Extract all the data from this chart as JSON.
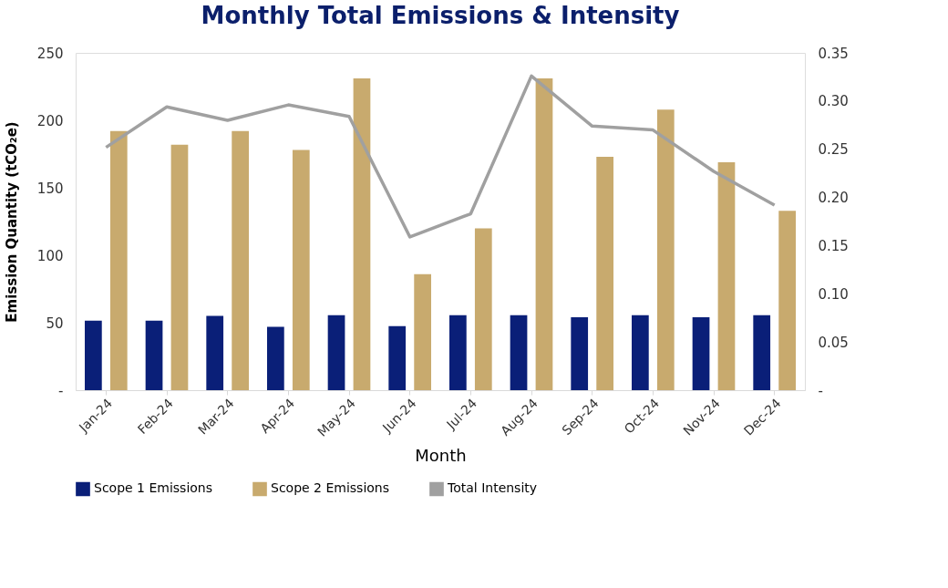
{
  "chart_data": {
    "type": "bar",
    "title": "Monthly Total Emissions & Intensity",
    "xlabel": "Month",
    "ylabel": "Emission Quantity (tCO₂e)",
    "categories": [
      "Jan-24",
      "Feb-24",
      "Mar-24",
      "Apr-24",
      "May-24",
      "Jun-24",
      "Jul-24",
      "Aug-24",
      "Sep-24",
      "Oct-24",
      "Nov-24",
      "Dec-24"
    ],
    "series": [
      {
        "name": "Scope 1 Emissions",
        "color": "#0a1f78",
        "values": [
          51.5,
          51.5,
          55,
          47,
          55.5,
          47.5,
          55.5,
          55.5,
          54,
          55.5,
          54,
          55.5
        ]
      },
      {
        "name": "Scope 2 Emissions",
        "color": "#c8aa6e",
        "values": [
          192,
          182,
          192,
          178,
          231,
          86,
          120,
          231,
          173,
          208,
          169,
          133
        ]
      },
      {
        "name": "Total Intensity",
        "type": "line",
        "axis": "y2",
        "color": "#a0a0a0",
        "values": [
          0.252,
          0.294,
          0.28,
          0.296,
          0.284,
          0.159,
          0.183,
          0.326,
          0.274,
          0.27,
          0.227,
          0.192
        ]
      }
    ],
    "ylim": [
      0,
      250
    ],
    "yticks": [
      {
        "value": 0,
        "label": "-"
      },
      50,
      100,
      150,
      200,
      250
    ],
    "y2lim": [
      0,
      0.35
    ],
    "y2ticks": [
      {
        "value": 0,
        "label": "-"
      },
      {
        "value": 0.05,
        "label": "0.05"
      },
      {
        "value": 0.1,
        "label": "0.10"
      },
      {
        "value": 0.15,
        "label": "0.15"
      },
      {
        "value": 0.2,
        "label": "0.20"
      },
      {
        "value": 0.25,
        "label": "0.25"
      },
      {
        "value": 0.3,
        "label": "0.30"
      },
      {
        "value": 0.35,
        "label": "0.35"
      }
    ],
    "grid": false,
    "legend": "bottom"
  }
}
